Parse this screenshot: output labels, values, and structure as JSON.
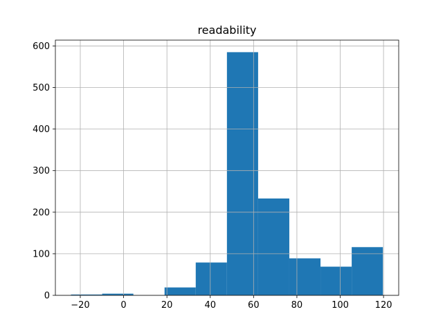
{
  "chart_data": {
    "type": "histogram",
    "title": "readability",
    "xlabel": "",
    "ylabel": "",
    "bins": [
      {
        "x0": -24.3,
        "x1": -9.9,
        "count": 2
      },
      {
        "x0": -9.9,
        "x1": 4.5,
        "count": 4
      },
      {
        "x0": 4.5,
        "x1": 18.9,
        "count": 0
      },
      {
        "x0": 18.9,
        "x1": 33.3,
        "count": 19
      },
      {
        "x0": 33.3,
        "x1": 47.7,
        "count": 79
      },
      {
        "x0": 47.7,
        "x1": 62.1,
        "count": 585
      },
      {
        "x0": 62.1,
        "x1": 76.5,
        "count": 233
      },
      {
        "x0": 76.5,
        "x1": 90.9,
        "count": 89
      },
      {
        "x0": 90.9,
        "x1": 105.3,
        "count": 69
      },
      {
        "x0": 105.3,
        "x1": 119.7,
        "count": 116
      }
    ],
    "xlim": [
      -31.5,
      127.0
    ],
    "ylim": [
      0,
      614
    ],
    "xticks": [
      -20,
      0,
      20,
      40,
      60,
      80,
      100,
      120
    ],
    "xtick_labels": [
      "−20",
      "0",
      "20",
      "40",
      "60",
      "80",
      "100",
      "120"
    ],
    "yticks": [
      0,
      100,
      200,
      300,
      400,
      500,
      600
    ],
    "ytick_labels": [
      "0",
      "100",
      "200",
      "300",
      "400",
      "500",
      "600"
    ],
    "grid": true,
    "bar_color": "#1f77b4",
    "grid_color": "#b0b0b0"
  }
}
